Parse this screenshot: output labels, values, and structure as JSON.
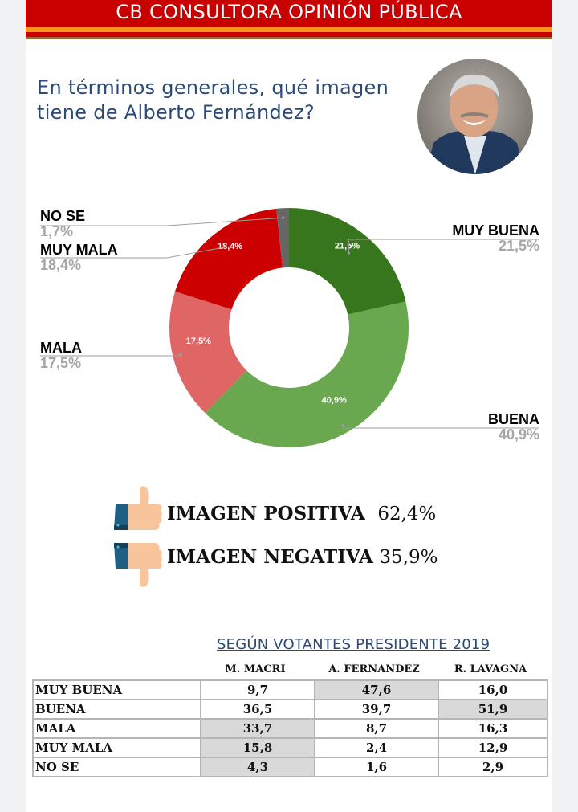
{
  "header": {
    "title": "CB CONSULTORA OPINIÓN PÚBLICA"
  },
  "question": {
    "line1": "En términos generales, qué imagen",
    "line2": "tiene de Alberto Fernández?"
  },
  "colors": {
    "header_red": "#c80000",
    "header_orange": "#f7941d",
    "title_blue": "#2b4a78",
    "muy_buena": "#38761d",
    "buena": "#6aa84f",
    "mala": "#e06666",
    "muy_mala": "#cc0000",
    "no_se": "#666666"
  },
  "chart_data": {
    "type": "pie",
    "title": "En términos generales, qué imagen tiene de Alberto Fernández?",
    "donut": true,
    "categories": [
      "MUY BUENA",
      "BUENA",
      "MALA",
      "MUY MALA",
      "NO SE"
    ],
    "values": [
      21.5,
      40.9,
      17.5,
      18.4,
      1.7
    ],
    "value_labels": [
      "21,5%",
      "40,9%",
      "17,5%",
      "18,4%",
      "1,7%"
    ],
    "inner_labels": [
      "21,5%",
      "40,9%",
      "17,5%",
      "18,4%",
      ""
    ],
    "unit": "%"
  },
  "summary": {
    "positive_label": "IMAGEN POSITIVA",
    "positive_value": "62,4%",
    "negative_label": "IMAGEN NEGATIVA",
    "negative_value": "35,9%"
  },
  "table": {
    "subtitle": "SEGÚN VOTANTES PRESIDENTE 2019",
    "columns": [
      "M. MACRI",
      "A. FERNANDEZ",
      "R. LAVAGNA"
    ],
    "rows": [
      {
        "label": "MUY BUENA",
        "values": [
          "9,7",
          "47,6",
          "16,0"
        ],
        "highlight": [
          false,
          true,
          false
        ]
      },
      {
        "label": "BUENA",
        "values": [
          "36,5",
          "39,7",
          "51,9"
        ],
        "highlight": [
          false,
          false,
          true
        ]
      },
      {
        "label": "MALA",
        "values": [
          "33,7",
          "8,7",
          "16,3"
        ],
        "highlight": [
          true,
          false,
          false
        ]
      },
      {
        "label": "MUY MALA",
        "values": [
          "15,8",
          "2,4",
          "12,9"
        ],
        "highlight": [
          true,
          false,
          false
        ]
      },
      {
        "label": "NO SE",
        "values": [
          "4,3",
          "1,6",
          "2,9"
        ],
        "highlight": [
          true,
          false,
          false
        ]
      }
    ]
  }
}
